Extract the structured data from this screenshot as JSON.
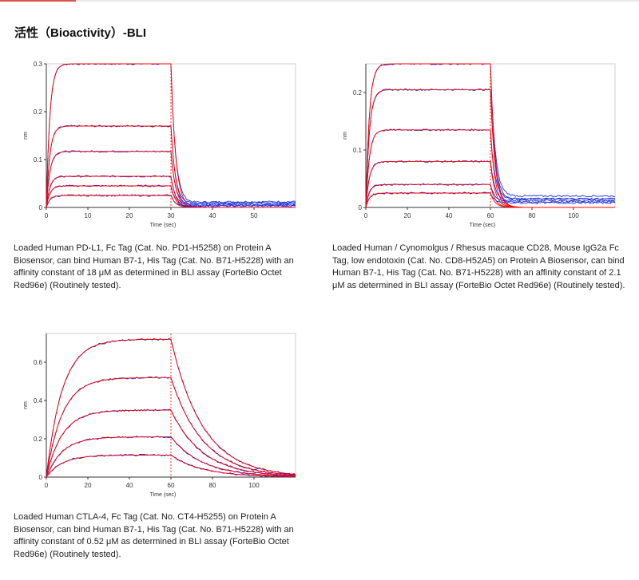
{
  "section": {
    "title": "活性（Bioactivity）-BLI"
  },
  "colors": {
    "accent": "#d9534f",
    "fit": "#ff0000",
    "data": "#1f2fd6",
    "axis": "#333333"
  },
  "charts": [
    {
      "xlabel": "Time (sec)",
      "ylabel": "nm",
      "caption": "Loaded Human PD-L1, Fc Tag (Cat. No. PD1-H5258) on Protein A Biosensor, can bind Human B7-1, His Tag (Cat. No. B71-H5228) with an affinity constant of 18 μM as determined in BLI assay (ForteBio Octet Red96e) (Routinely tested)."
    },
    {
      "xlabel": "Time (sec)",
      "ylabel": "nm",
      "caption": "Loaded Human / Cynomolgus / Rhesus macaque CD28, Mouse IgG2a Fc Tag, low endotoxin (Cat. No. CD8-H52A5) on Protein A Biosensor, can bind Human B7-1, His Tag (Cat. No. B71-H5228) with an affinity constant of 2.1 μM as determined in BLI assay (ForteBio Octet Red96e) (Routinely tested)."
    },
    {
      "xlabel": "Time (sec)",
      "ylabel": "nm",
      "caption": "Loaded Human CTLA-4, Fc Tag (Cat. No. CT4-H5255) on Protein A Biosensor, can bind Human B7-1, His Tag (Cat. No. B71-H5228) with an affinity constant of 0.52 μM as determined in BLI assay (ForteBio Octet Red96e) (Routinely tested)."
    }
  ],
  "chart_data": [
    {
      "type": "line",
      "xlabel": "Time (sec)",
      "ylabel": "nm",
      "xlim": [
        0,
        60
      ],
      "ylim": [
        0,
        0.3
      ],
      "xticks": [
        0,
        10,
        20,
        30,
        40,
        50
      ],
      "yticks": [
        0,
        0.1,
        0.2,
        0.3
      ],
      "assoc_end": 30,
      "k_on": 1.2,
      "k_off": 0.9,
      "series": [
        {
          "plateau": 0.3,
          "offset": 0.012
        },
        {
          "plateau": 0.17,
          "offset": 0.01
        },
        {
          "plateau": 0.117,
          "offset": 0.008
        },
        {
          "plateau": 0.065,
          "offset": 0.006
        },
        {
          "plateau": 0.045,
          "offset": 0.004
        },
        {
          "plateau": 0.025,
          "offset": 0.003
        }
      ]
    },
    {
      "type": "line",
      "xlabel": "Time (sec)",
      "ylabel": "nm",
      "xlim": [
        0,
        120
      ],
      "ylim": [
        0,
        0.25
      ],
      "xticks": [
        0,
        20,
        40,
        60,
        80,
        100
      ],
      "yticks": [
        0,
        0.1,
        0.2
      ],
      "assoc_end": 60,
      "k_on": 0.6,
      "k_off": 0.45,
      "series": [
        {
          "plateau": 0.25,
          "offset": 0.02
        },
        {
          "plateau": 0.205,
          "offset": 0.015
        },
        {
          "plateau": 0.135,
          "offset": 0.015
        },
        {
          "plateau": 0.08,
          "offset": 0.012
        },
        {
          "plateau": 0.04,
          "offset": 0.01
        },
        {
          "plateau": 0.025,
          "offset": 0.008
        }
      ]
    },
    {
      "type": "line",
      "xlabel": "Time (sec)",
      "ylabel": "nm",
      "xlim": [
        0,
        120
      ],
      "ylim": [
        0,
        0.75
      ],
      "xticks": [
        0,
        20,
        40,
        60,
        80,
        100
      ],
      "yticks": [
        0,
        0.2,
        0.4,
        0.6
      ],
      "assoc_end": 60,
      "k_on": 0.13,
      "k_off": 0.065,
      "series": [
        {
          "plateau": 0.72,
          "offset": 0
        },
        {
          "plateau": 0.52,
          "offset": 0
        },
        {
          "plateau": 0.35,
          "offset": 0
        },
        {
          "plateau": 0.21,
          "offset": 0
        },
        {
          "plateau": 0.115,
          "offset": 0
        }
      ]
    }
  ]
}
